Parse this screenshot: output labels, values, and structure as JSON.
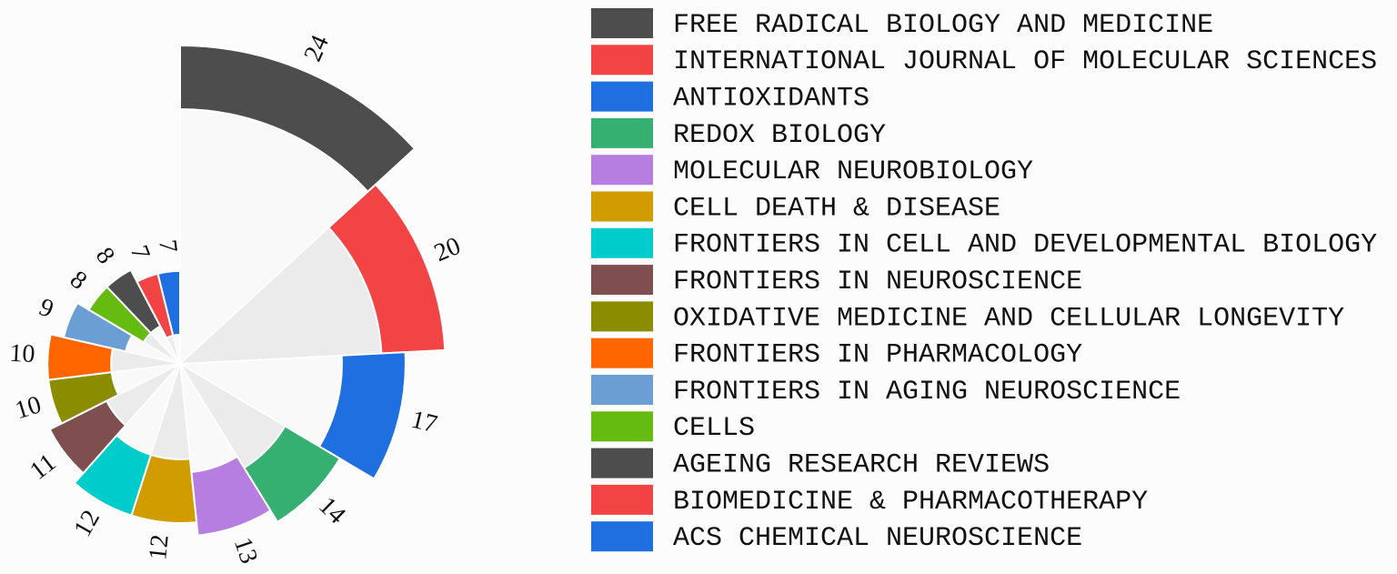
{
  "chart_data": {
    "type": "polar-bar",
    "categories": [
      "FREE RADICAL BIOLOGY AND MEDICINE",
      "INTERNATIONAL JOURNAL OF MOLECULAR SCIENCES",
      "ANTIOXIDANTS",
      "REDOX BIOLOGY",
      "MOLECULAR NEUROBIOLOGY",
      "CELL DEATH & DISEASE",
      "FRONTIERS IN CELL AND DEVELOPMENTAL BIOLOGY",
      "FRONTIERS IN NEUROSCIENCE",
      "OXIDATIVE MEDICINE AND CELLULAR LONGEVITY",
      "FRONTIERS IN PHARMACOLOGY",
      "FRONTIERS IN AGING NEUROSCIENCE",
      "CELLS",
      "AGEING RESEARCH REVIEWS",
      "BIOMEDICINE & PHARMACOTHERAPY",
      "ACS CHEMICAL NEUROSCIENCE"
    ],
    "values": [
      24,
      20,
      17,
      14,
      13,
      12,
      12,
      11,
      10,
      10,
      9,
      8,
      8,
      7,
      7
    ],
    "colors": [
      "#4d4d4d",
      "#f24444",
      "#1f6fe0",
      "#36b070",
      "#b57ee0",
      "#d19c00",
      "#00cccc",
      "#7f4f4f",
      "#8c8c00",
      "#ff6600",
      "#6b9fd4",
      "#66bb11",
      "#4d4d4d",
      "#f24444",
      "#1f6fe0"
    ],
    "legend": "right"
  }
}
